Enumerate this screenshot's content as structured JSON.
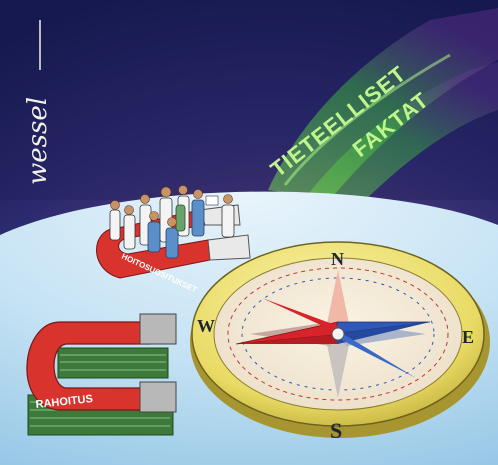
{
  "illustration": {
    "aurora_lines": [
      "TIETEELLISET",
      "FAKTAT"
    ],
    "horseshoe_magnet_label": "HOITOSUOSITUKSET",
    "bar_magnet_label": "RAHOITUS",
    "compass_points": {
      "north": "N",
      "east": "E",
      "south": "S",
      "west": "W"
    },
    "signature": "wessel"
  },
  "palette": {
    "sky_dark": "#1c1f5e",
    "sky_mid": "#3b2f7a",
    "glow": "#e6b43c",
    "aurora": "#5bd24a",
    "globe": "#bfe0f3",
    "compass_rim": "#e9dd6a",
    "needle_red": "#d8232a",
    "needle_blue": "#2f58b8",
    "magnet_red": "#d8332c",
    "money_green": "#3d7a3a"
  }
}
